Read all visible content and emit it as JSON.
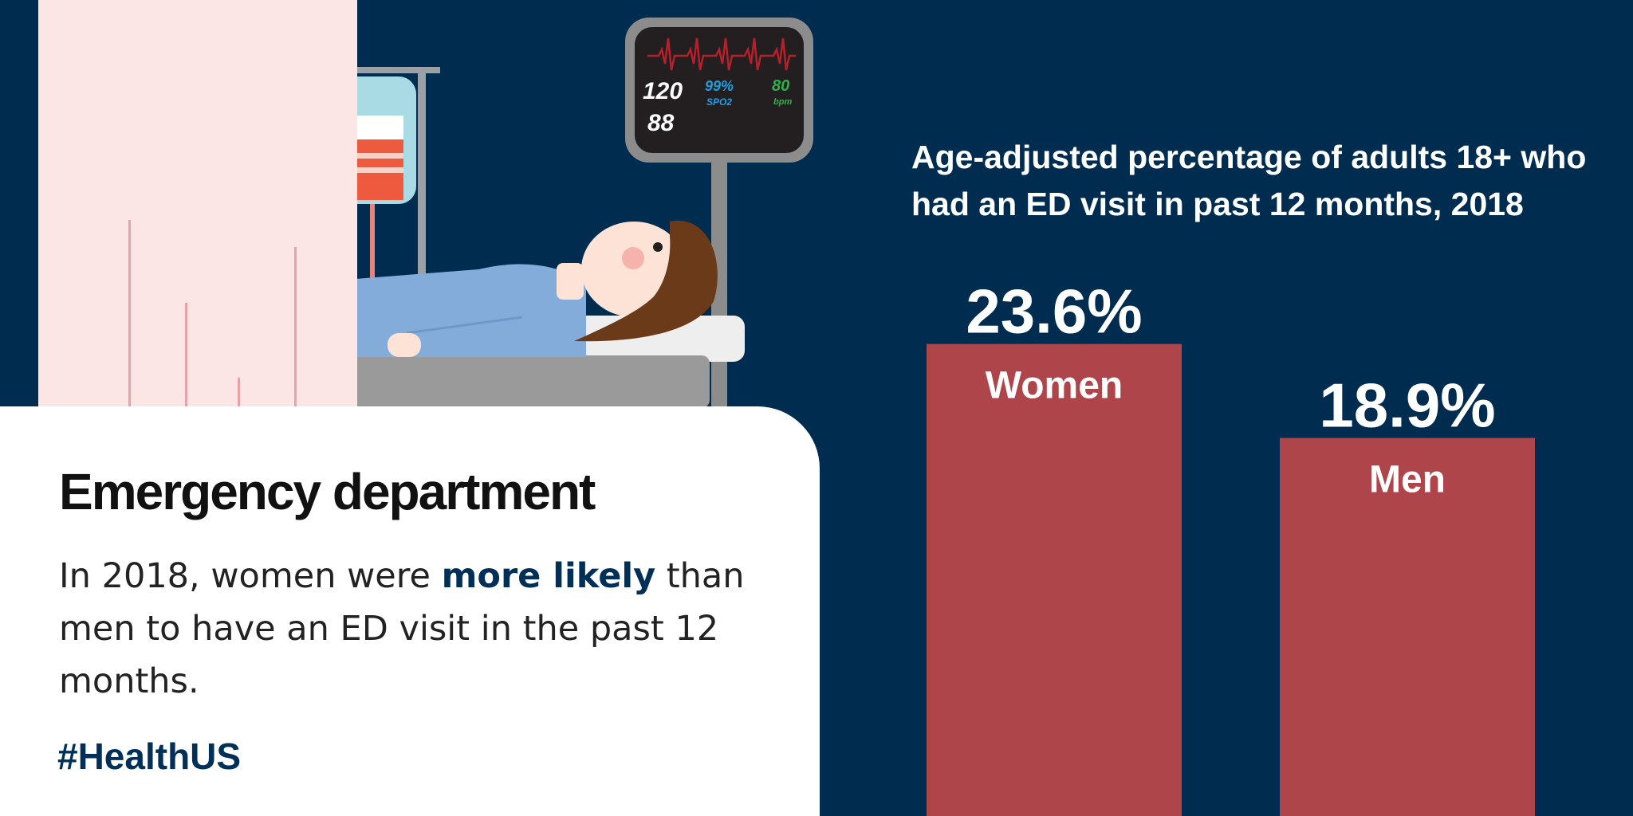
{
  "colors": {
    "background": "#002d4f",
    "bar": "#ae454a",
    "headline": "#111111",
    "accent": "#003057",
    "monitor_bp": "#ffffff",
    "monitor_spo2": "#1e9fe4",
    "monitor_hr": "#2bb34a",
    "monitor_trace": "#b5202a"
  },
  "illustration": {
    "monitor": {
      "systolic": "120",
      "diastolic": "88",
      "spo2_value": "99%",
      "spo2_label": "SPO2",
      "hr_value": "80",
      "hr_label": "bpm"
    }
  },
  "card": {
    "headline": "Emergency department",
    "body_before": "In 2018, women were ",
    "body_highlight": "more likely",
    "body_after": " than men to have an ED visit in the past 12 months.",
    "hashtag": "#HealthUS"
  },
  "chart_data": {
    "type": "bar",
    "title": "Age-adjusted percentage of adults 18+ who had an ED visit in past 12 months, 2018",
    "categories": [
      "Women",
      "Men"
    ],
    "values": [
      23.6,
      18.9
    ],
    "value_labels": [
      "23.6%",
      "18.9%"
    ],
    "unit": "%",
    "grid": false,
    "legend": "none"
  }
}
